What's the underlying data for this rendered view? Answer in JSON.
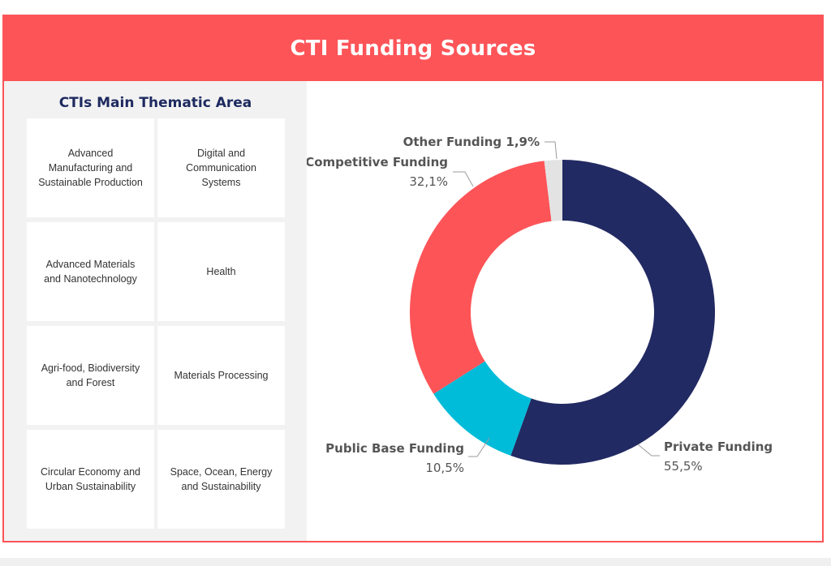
{
  "title": "CTI Funding Sources",
  "thematic": {
    "heading": "CTIs Main Thematic Area",
    "areas": [
      "Advanced Manufacturing and Sustainable Production",
      "Digital and Communication Systems",
      "Advanced Materials and Nanotechnology",
      "Health",
      "Agri-food, Biodiversity and Forest",
      "Materials Processing",
      "Circular Economy and Urban Sustainability",
      "Space, Ocean, Energy and Sustainability"
    ]
  },
  "colors": {
    "accent": "#fd5458",
    "private": "#222a63",
    "public_base": "#00bcd9",
    "competitive": "#fd5458",
    "other": "#e3e3e3"
  },
  "chart_data": {
    "type": "pie",
    "donut": true,
    "title": "CTI Funding Sources",
    "slices": [
      {
        "label": "Private Funding",
        "value": 55.5,
        "value_label": "55,5%",
        "color": "#222a63"
      },
      {
        "label": "Public Base Funding",
        "value": 10.5,
        "value_label": "10,5%",
        "color": "#00bcd9"
      },
      {
        "label": "Competitive Funding",
        "value": 32.1,
        "value_label": "32,1%",
        "color": "#fd5458"
      },
      {
        "label": "Other Funding",
        "value": 1.9,
        "value_label": "1,9%",
        "color": "#e3e3e3"
      }
    ]
  }
}
